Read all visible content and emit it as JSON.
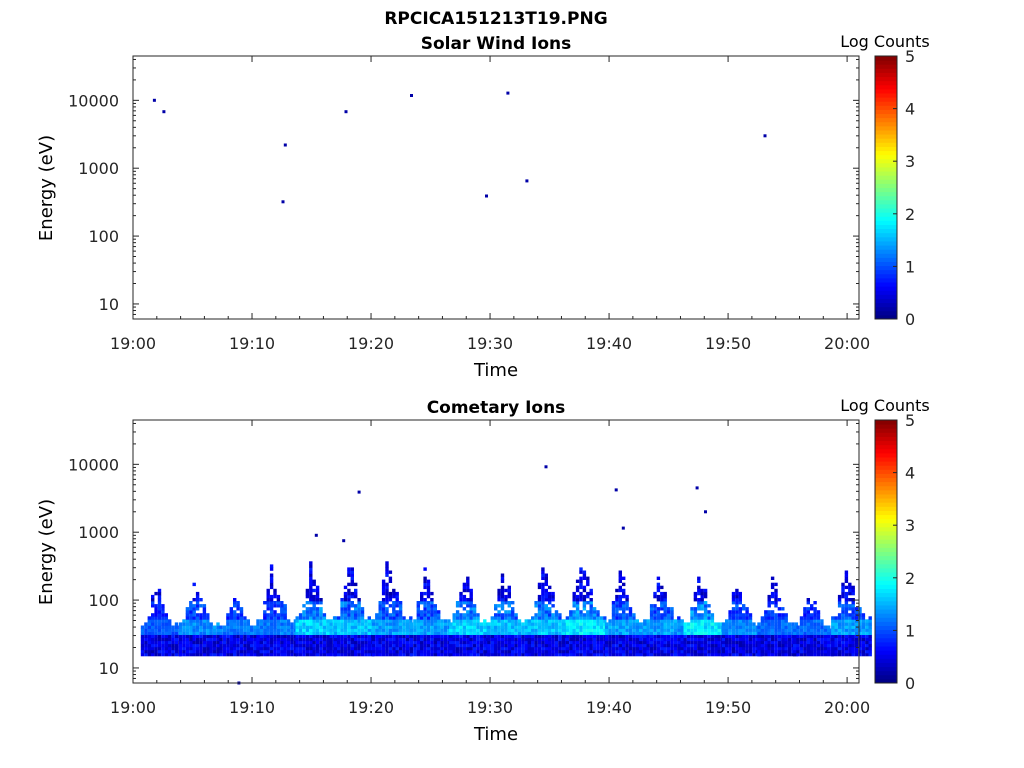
{
  "figure": {
    "title": "RPCICA151213T19.PNG"
  },
  "chart_data": [
    {
      "type": "heatmap",
      "title": "Solar Wind Ions",
      "xlabel": "Time",
      "ylabel": "Energy (eV)",
      "y_scale": "log",
      "ylim": [
        6,
        45000
      ],
      "xlim": [
        "19:00",
        "20:01"
      ],
      "x_ticks": [
        "19:00",
        "19:10",
        "19:20",
        "19:30",
        "19:40",
        "19:50",
        "20:00"
      ],
      "y_ticks": [
        "10",
        "100",
        "1000",
        "10000"
      ],
      "colorbar": {
        "label": "Log Counts",
        "range": [
          0,
          5
        ],
        "ticks": [
          "0",
          "1",
          "2",
          "3",
          "4",
          "5"
        ],
        "colormap": "jet"
      },
      "points": [
        {
          "time": "19:01.8",
          "energy": 10000,
          "log_counts": 0.2
        },
        {
          "time": "19:02.6",
          "energy": 6800,
          "log_counts": 0.2
        },
        {
          "time": "19:12.8",
          "energy": 2200,
          "log_counts": 0.2
        },
        {
          "time": "19:12.6",
          "energy": 320,
          "log_counts": 0.2
        },
        {
          "time": "19:17.9",
          "energy": 6800,
          "log_counts": 0.2
        },
        {
          "time": "19:23.4",
          "energy": 11800,
          "log_counts": 0.2
        },
        {
          "time": "19:29.7",
          "energy": 390,
          "log_counts": 0.2
        },
        {
          "time": "19:31.5",
          "energy": 12800,
          "log_counts": 0.2
        },
        {
          "time": "19:33.1",
          "energy": 650,
          "log_counts": 0.2
        },
        {
          "time": "19:53.1",
          "energy": 3000,
          "log_counts": 0.2
        }
      ]
    },
    {
      "type": "heatmap",
      "title": "Cometary Ions",
      "xlabel": "Time",
      "ylabel": "Energy (eV)",
      "y_scale": "log",
      "ylim": [
        6,
        45000
      ],
      "xlim": [
        "19:00",
        "20:01"
      ],
      "x_ticks": [
        "19:00",
        "19:10",
        "19:20",
        "19:30",
        "19:40",
        "19:50",
        "20:00"
      ],
      "y_ticks": [
        "10",
        "100",
        "1000",
        "10000"
      ],
      "colorbar": {
        "label": "Log Counts",
        "range": [
          0,
          5
        ],
        "ticks": [
          "0",
          "1",
          "2",
          "3",
          "4",
          "5"
        ],
        "colormap": "jet"
      },
      "bursts": [
        {
          "time": "19:01.8",
          "peak_energy": 180,
          "peak_log_counts": 1.2
        },
        {
          "time": "19:05.0",
          "peak_energy": 200,
          "peak_log_counts": 1.5
        },
        {
          "time": "19:08.4",
          "peak_energy": 140,
          "peak_log_counts": 1.4
        },
        {
          "time": "19:11.5",
          "peak_energy": 330,
          "peak_log_counts": 1.4
        },
        {
          "time": "19:14.8",
          "peak_energy": 400,
          "peak_log_counts": 1.9
        },
        {
          "time": "19:18.0",
          "peak_energy": 420,
          "peak_log_counts": 1.8
        },
        {
          "time": "19:21.2",
          "peak_energy": 450,
          "peak_log_counts": 1.6
        },
        {
          "time": "19:24.4",
          "peak_energy": 320,
          "peak_log_counts": 1.6
        },
        {
          "time": "19:27.7",
          "peak_energy": 300,
          "peak_log_counts": 1.9
        },
        {
          "time": "19:30.9",
          "peak_energy": 320,
          "peak_log_counts": 1.8
        },
        {
          "time": "19:34.3",
          "peak_energy": 420,
          "peak_log_counts": 1.8
        },
        {
          "time": "19:37.5",
          "peak_energy": 480,
          "peak_log_counts": 2.0
        },
        {
          "time": "19:40.8",
          "peak_energy": 300,
          "peak_log_counts": 1.6
        },
        {
          "time": "19:44.0",
          "peak_energy": 330,
          "peak_log_counts": 1.6
        },
        {
          "time": "19:47.4",
          "peak_energy": 250,
          "peak_log_counts": 2.0
        },
        {
          "time": "19:50.6",
          "peak_energy": 200,
          "peak_log_counts": 1.5
        },
        {
          "time": "19:53.6",
          "peak_energy": 240,
          "peak_log_counts": 1.3
        },
        {
          "time": "19:56.6",
          "peak_energy": 160,
          "peak_log_counts": 1.3
        },
        {
          "time": "19:59.8",
          "peak_energy": 400,
          "peak_log_counts": 1.6
        }
      ],
      "points": [
        {
          "time": "19:34.7",
          "energy": 9200,
          "log_counts": 0.2
        },
        {
          "time": "19:19.0",
          "energy": 3900,
          "log_counts": 0.2
        },
        {
          "time": "19:40.6",
          "energy": 4200,
          "log_counts": 0.2
        },
        {
          "time": "19:47.4",
          "energy": 4500,
          "log_counts": 0.2
        },
        {
          "time": "19:48.1",
          "energy": 2000,
          "log_counts": 0.2
        },
        {
          "time": "19:41.2",
          "energy": 1150,
          "log_counts": 0.2
        },
        {
          "time": "19:15.4",
          "energy": 900,
          "log_counts": 0.2
        },
        {
          "time": "19:17.7",
          "energy": 750,
          "log_counts": 0.2
        },
        {
          "time": "19:08.9",
          "energy": 6,
          "log_counts": 0.2
        }
      ]
    }
  ]
}
